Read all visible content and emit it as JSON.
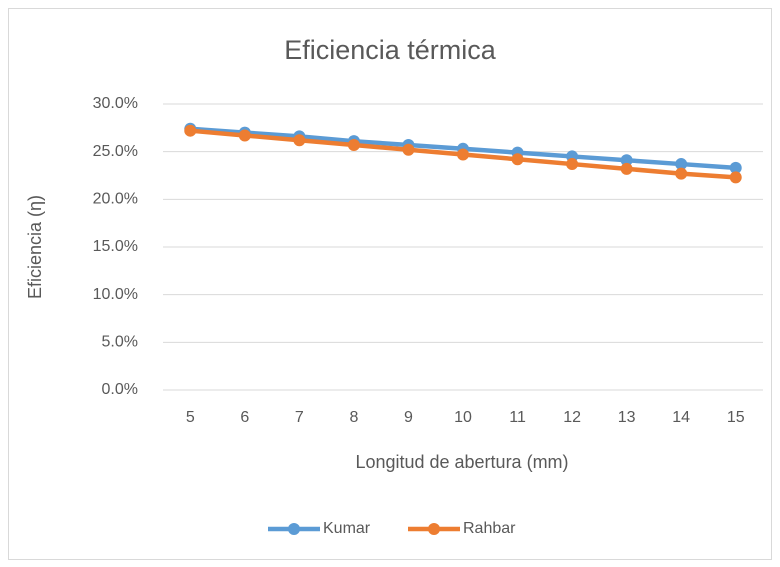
{
  "chart_data": {
    "type": "line",
    "title": "Eficiencia térmica",
    "x_label": "Longitud de abertura (mm)",
    "y_label": "Eficiencia (η)",
    "categories": [
      "5",
      "6",
      "7",
      "8",
      "9",
      "10",
      "11",
      "12",
      "13",
      "14",
      "15"
    ],
    "series": [
      {
        "name": "Kumar",
        "color": "#5b9bd5",
        "values": [
          27.4,
          27.0,
          26.6,
          26.1,
          25.7,
          25.3,
          24.9,
          24.5,
          24.1,
          23.7,
          23.3
        ]
      },
      {
        "name": "Rahbar",
        "color": "#ed7d31",
        "values": [
          27.2,
          26.7,
          26.2,
          25.7,
          25.2,
          24.7,
          24.2,
          23.7,
          23.2,
          22.7,
          22.3
        ]
      }
    ],
    "ylim": [
      0,
      30
    ],
    "yticks": [
      {
        "value": 0,
        "label": "0.0%"
      },
      {
        "value": 5,
        "label": "5.0%"
      },
      {
        "value": 10,
        "label": "10.0%"
      },
      {
        "value": 15,
        "label": "15.0%"
      },
      {
        "value": 20,
        "label": "20.0%"
      },
      {
        "value": 25,
        "label": "25.0%"
      },
      {
        "value": 30,
        "label": "30.0%"
      }
    ],
    "grid": true,
    "legend": "bottom"
  }
}
